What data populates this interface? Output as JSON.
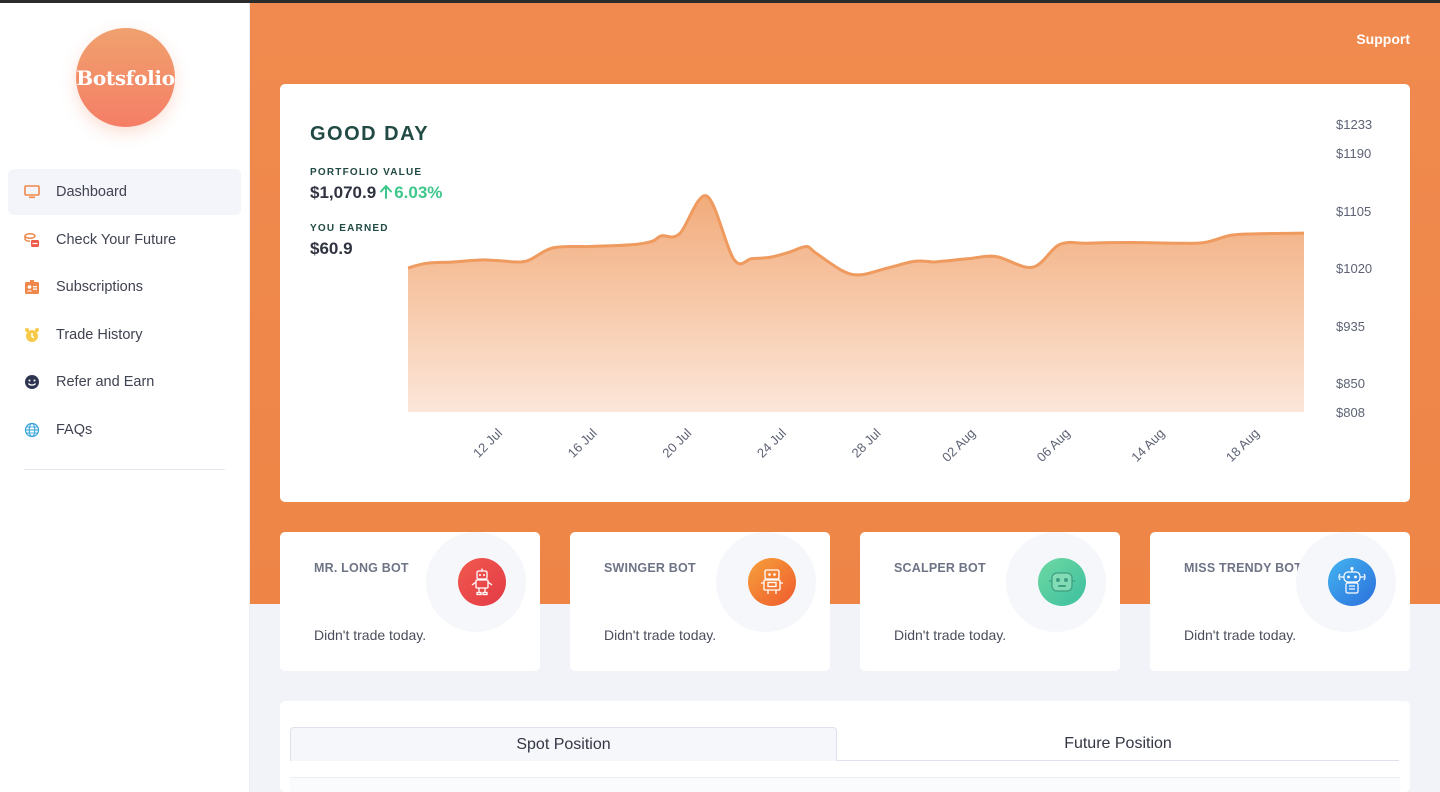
{
  "app": {
    "logo_text": "Botsfolio"
  },
  "header": {
    "support_label": "Support"
  },
  "sidebar": {
    "items": [
      {
        "label": "Dashboard",
        "icon": "monitor-icon",
        "active": true
      },
      {
        "label": "Check Your Future",
        "icon": "coins-icon",
        "active": false
      },
      {
        "label": "Subscriptions",
        "icon": "id-badge-icon",
        "active": false
      },
      {
        "label": "Trade History",
        "icon": "alarm-clock-icon",
        "active": false
      },
      {
        "label": "Refer and Earn",
        "icon": "smiley-icon",
        "active": false
      },
      {
        "label": "FAQs",
        "icon": "globe-icon",
        "active": false
      }
    ]
  },
  "portfolio": {
    "greeting": "GOOD DAY",
    "value_label": "PORTFOLIO VALUE",
    "value": "$1,070.9",
    "change": "6.03%",
    "earned_label": "YOU EARNED",
    "earned": "$60.9"
  },
  "chart_data": {
    "type": "area",
    "title": "",
    "xlabel": "",
    "ylabel": "",
    "x_ticks": [
      "12 Jul",
      "16 Jul",
      "20 Jul",
      "24 Jul",
      "28 Jul",
      "02 Aug",
      "06 Aug",
      "14 Aug",
      "18 Aug"
    ],
    "y_ticks": [
      "$1233",
      "$1190",
      "$1105",
      "$1020",
      "$935",
      "$850",
      "$808"
    ],
    "y_tick_values": [
      1233,
      1190,
      1105,
      1020,
      935,
      850,
      808
    ],
    "ylim": [
      808,
      1233
    ],
    "series": [
      {
        "x": [
          0,
          2,
          5,
          8,
          10,
          13,
          16,
          20,
          22,
          25,
          27,
          28,
          30,
          33,
          36,
          38,
          40,
          42,
          44,
          45,
          48,
          50,
          53,
          56,
          58,
          59,
          62,
          65,
          69,
          72,
          75,
          80,
          85,
          88,
          91,
          94,
          99
        ],
        "values": [
          1020,
          1027,
          1029,
          1032,
          1031,
          1030,
          1050,
          1052,
          1053,
          1055,
          1060,
          1068,
          1071,
          1127,
          1033,
          1034,
          1036,
          1043,
          1052,
          1043,
          1016,
          1010,
          1020,
          1030,
          1029,
          1030,
          1034,
          1037,
          1021,
          1055,
          1057,
          1058,
          1057,
          1058,
          1069,
          1071,
          1072
        ]
      }
    ],
    "x_range": [
      0,
      99
    ],
    "grid": false,
    "colors": {
      "line": "#ef9a5e",
      "fill_top": "#f1a773",
      "fill_bottom": "#fbe3d4"
    }
  },
  "bots": [
    {
      "name": "MR. LONG BOT",
      "status": "Didn't trade today.",
      "icon": "robot-icon",
      "color": "#ec4a47"
    },
    {
      "name": "SWINGER BOT",
      "status": "Didn't trade today.",
      "icon": "robot-icon",
      "color": "#f27b34"
    },
    {
      "name": "SCALPER BOT",
      "status": "Didn't trade today.",
      "icon": "robot-face-icon",
      "color": "#55cc9a"
    },
    {
      "name": "MISS TRENDY BOT",
      "status": "Didn't trade today.",
      "icon": "robot-antenna-icon",
      "color": "#3a8ee8"
    }
  ],
  "positions": {
    "tabs": [
      {
        "label": "Spot Position",
        "active": true
      },
      {
        "label": "Future Position",
        "active": false
      }
    ]
  }
}
